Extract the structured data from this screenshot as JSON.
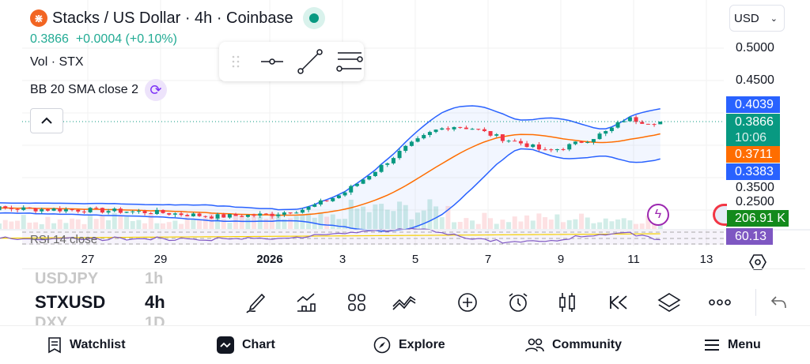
{
  "header": {
    "title": "Stacks / US Dollar · 4h · Coinbase",
    "logo_glyph": "⋇",
    "last": "0.3866",
    "change": "+0.0004 (+0.10%)",
    "vol_label": "Vol · STX",
    "bb_label": "BB 20 SMA close 2",
    "rsi_label": "RSI 14 close"
  },
  "currency": "USD",
  "price_axis": [
    "0.5000",
    "0.4500",
    "0.3500",
    "0.2500"
  ],
  "tags": {
    "bb_upper": "0.4039",
    "last": "0.3866",
    "countdown": "10:06",
    "bb_basis": "0.3711",
    "bb_lower": "0.3383",
    "volume": "206.91 K",
    "rsi": "60.13"
  },
  "colors": {
    "up": "#089981",
    "down": "#f23645",
    "bb": "#2962ff",
    "basis": "#ff6d00",
    "rsi": "#7e57c2",
    "vol_tag": "#138a1c"
  },
  "time_axis": [
    {
      "label": "27",
      "day": -5
    },
    {
      "label": "29",
      "day": -3
    },
    {
      "label": "2026",
      "day": 0,
      "bold": true
    },
    {
      "label": "3",
      "day": 2
    },
    {
      "label": "5",
      "day": 4
    },
    {
      "label": "7",
      "day": 6
    },
    {
      "label": "9",
      "day": 8
    },
    {
      "label": "11",
      "day": 10
    },
    {
      "label": "13",
      "day": 12
    }
  ],
  "chart_data": {
    "type": "candlestick",
    "interval": "4h",
    "price_path": [
      [
        -8.6,
        0.255
      ],
      [
        -7,
        0.252
      ],
      [
        -5,
        0.25
      ],
      [
        -3,
        0.246
      ],
      [
        -1.5,
        0.24
      ],
      [
        0,
        0.243
      ],
      [
        1,
        0.252
      ],
      [
        2,
        0.275
      ],
      [
        3,
        0.315
      ],
      [
        3.7,
        0.345
      ],
      [
        4.5,
        0.372
      ],
      [
        5,
        0.38
      ],
      [
        5.6,
        0.376
      ],
      [
        6.3,
        0.362
      ],
      [
        7,
        0.352
      ],
      [
        7.6,
        0.34
      ],
      [
        8.1,
        0.347
      ],
      [
        8.8,
        0.36
      ],
      [
        9.3,
        0.372
      ],
      [
        9.8,
        0.392
      ],
      [
        10.3,
        0.386
      ],
      [
        10.8,
        0.3866
      ]
    ],
    "ylim": [
      0.23,
      0.52
    ]
  },
  "symbols": {
    "prev": "USDJPY",
    "prev_tf": "1h",
    "current": "STXUSD",
    "current_tf": "4h",
    "next": "DXY",
    "next_tf": "1D"
  },
  "nav": [
    {
      "label": "Watchlist",
      "icon": "watchlist-icon"
    },
    {
      "label": "Chart",
      "icon": "chart-icon"
    },
    {
      "label": "Explore",
      "icon": "compass-icon"
    },
    {
      "label": "Community",
      "icon": "community-icon"
    },
    {
      "label": "Menu",
      "icon": "menu-icon"
    }
  ]
}
